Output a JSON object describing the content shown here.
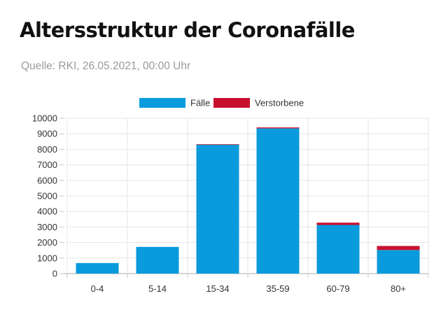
{
  "title": "Altersstruktur der Coronafälle",
  "subtitle": "Quelle: RKI, 26.05.2021, 00:00 Uhr",
  "colors": {
    "faelle": "#0a9bdc",
    "verstorbene": "#c8102e",
    "grid": "#e6e6e6",
    "axis": "#c8c8c8",
    "text": "#333333"
  },
  "chart_data": {
    "type": "bar",
    "stacked": true,
    "categories": [
      "0-4",
      "5-14",
      "15-34",
      "35-59",
      "60-79",
      "80+"
    ],
    "series": [
      {
        "name": "Fälle",
        "values": [
          680,
          1720,
          8320,
          9350,
          3130,
          1520
        ]
      },
      {
        "name": "Verstorbene",
        "values": [
          0,
          0,
          2,
          60,
          150,
          260
        ]
      }
    ],
    "ylim": [
      0,
      10000
    ],
    "yticks": [
      0,
      1000,
      2000,
      3000,
      4000,
      5000,
      6000,
      7000,
      8000,
      9000,
      10000
    ],
    "grid": true,
    "legend": "top-center"
  }
}
